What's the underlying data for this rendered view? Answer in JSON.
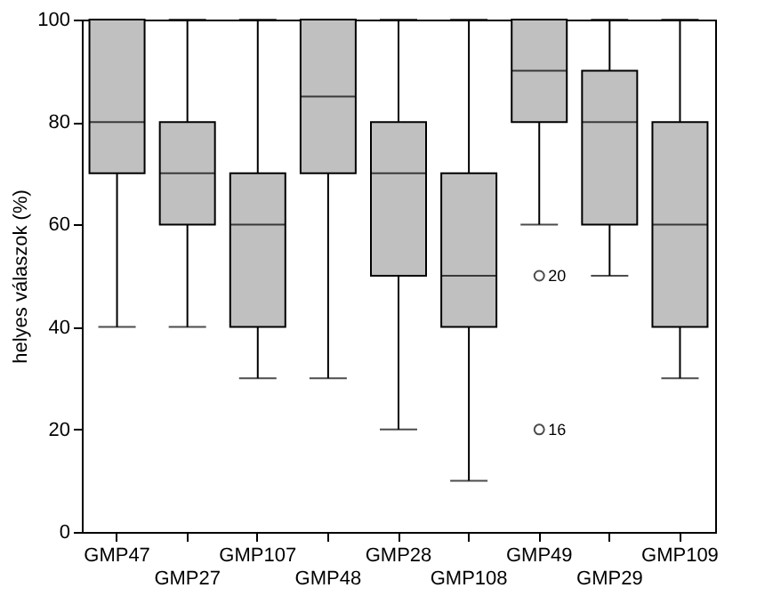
{
  "chart_data": {
    "type": "box",
    "ylabel": "helyes válaszok (%)",
    "categories": [
      "GMP47",
      "GMP27",
      "GMP107",
      "GMP48",
      "GMP28",
      "GMP108",
      "GMP49",
      "GMP29",
      "GMP109"
    ],
    "boxes": [
      {
        "low": 40,
        "q1": 70,
        "median": 80,
        "q3": 100,
        "high": 100
      },
      {
        "low": 40,
        "q1": 60,
        "median": 70,
        "q3": 80,
        "high": 100
      },
      {
        "low": 30,
        "q1": 40,
        "median": 60,
        "q3": 70,
        "high": 100
      },
      {
        "low": 30,
        "q1": 70,
        "median": 85,
        "q3": 100,
        "high": 100
      },
      {
        "low": 20,
        "q1": 50,
        "median": 70,
        "q3": 80,
        "high": 100
      },
      {
        "low": 10,
        "q1": 40,
        "median": 50,
        "q3": 70,
        "high": 100
      },
      {
        "low": 60,
        "q1": 80,
        "median": 90,
        "q3": 100,
        "high": 100,
        "outliers": [
          50,
          20
        ]
      },
      {
        "low": 50,
        "q1": 60,
        "median": 80,
        "q3": 90,
        "high": 100
      },
      {
        "low": 30,
        "q1": 40,
        "median": 60,
        "q3": 80,
        "high": 100
      }
    ],
    "color": "#c0c0c0",
    "ylim": [
      0,
      100
    ],
    "yticks": [
      0,
      20,
      40,
      60,
      80,
      100
    ],
    "grid": false,
    "annotations": [
      "20",
      "16"
    ]
  }
}
